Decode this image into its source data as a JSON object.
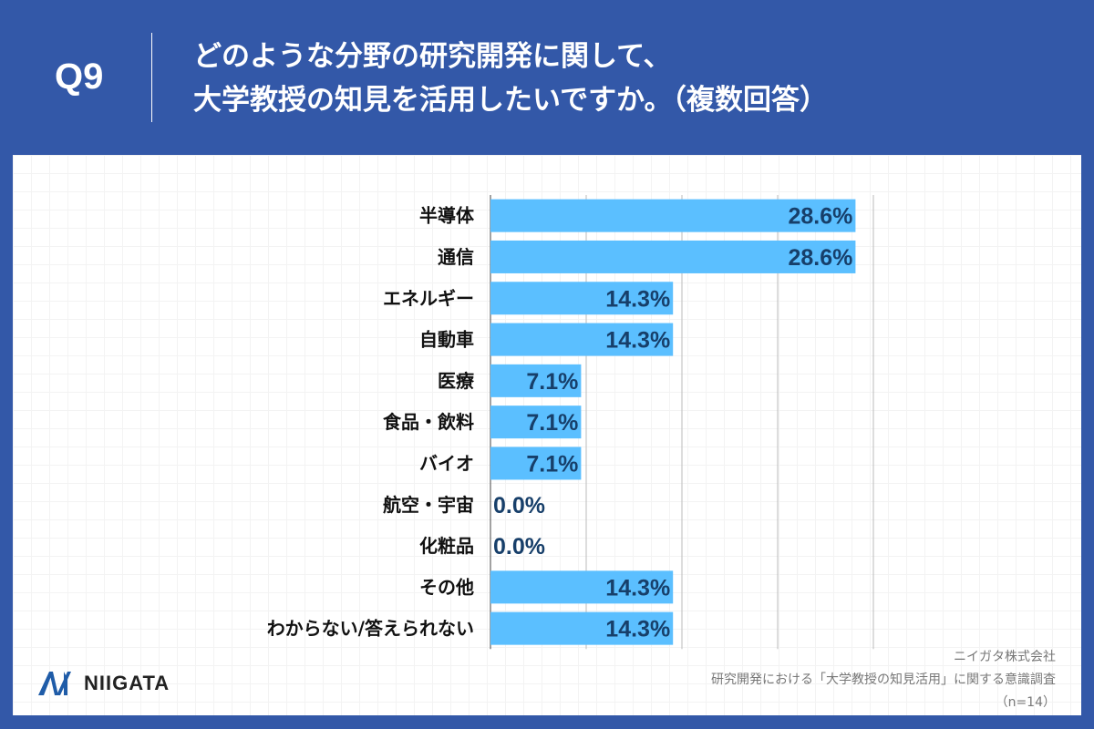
{
  "header": {
    "question_no": "Q9",
    "title_line1": "どのような分野の研究開発に関して、",
    "title_line2": "大学教授の知見を活用したいですか。（複数回答）"
  },
  "colors": {
    "background": "#3358a8",
    "bar": "#5bbfff",
    "value_label": "#173f6a"
  },
  "chart_data": {
    "type": "bar",
    "orientation": "horizontal",
    "categories": [
      "半導体",
      "通信",
      "エネルギー",
      "自動車",
      "医療",
      "食品・飲料",
      "バイオ",
      "航空・宇宙",
      "化粧品",
      "その他",
      "わからない/答えられない"
    ],
    "values": [
      28.6,
      28.6,
      14.3,
      14.3,
      7.1,
      7.1,
      7.1,
      0.0,
      0.0,
      14.3,
      14.3
    ],
    "value_labels": [
      "28.6%",
      "28.6%",
      "14.3%",
      "14.3%",
      "7.1%",
      "7.1%",
      "7.1%",
      "0.0%",
      "0.0%",
      "14.3%",
      "14.3%"
    ],
    "xlim": [
      0,
      30
    ],
    "gridlines": [
      0,
      7.5,
      15,
      22.5,
      30
    ],
    "grid": true,
    "legend": "none"
  },
  "footer": {
    "company": "ニイガタ株式会社",
    "survey": "研究開発における「大学教授の知見活用」に関する意識調査",
    "sample": "（n=14）",
    "logo_text": "NIIGATA"
  }
}
